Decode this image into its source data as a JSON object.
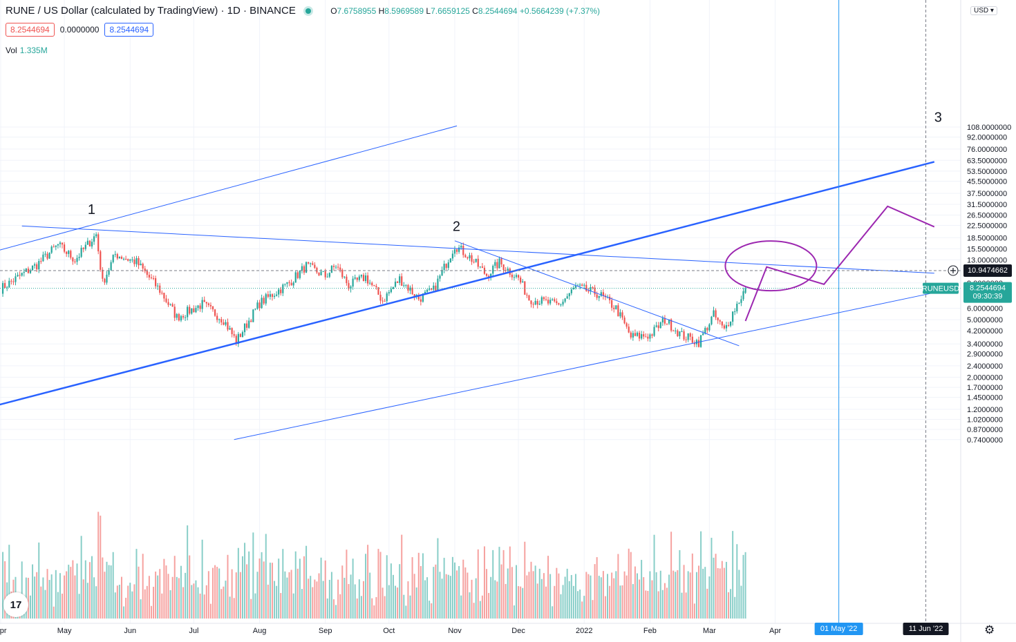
{
  "header": {
    "symbol_title": "RUNE / US Dollar (calculated by TradingView) · 1D · BINANCE",
    "ohlc": {
      "o_label": "O",
      "o": "7.6758955",
      "h_label": "H",
      "h": "8.5969589",
      "l_label": "L",
      "l": "7.6659125",
      "c_label": "C",
      "c": "8.2544694",
      "change": "+0.5664239 (+7.37%)"
    },
    "bid": "8.2544694",
    "spread": "0.0000000",
    "ask": "8.2544694",
    "vol_label": "Vol",
    "vol_value": "1.335M",
    "currency": "USD",
    "currency_icon": "chevron-down-icon"
  },
  "price_axis": {
    "ticks": [
      "108.0000000",
      "92.0000000",
      "76.0000000",
      "63.5000000",
      "53.5000000",
      "45.5000000",
      "37.5000000",
      "31.5000000",
      "26.5000000",
      "22.5000000",
      "18.5000000",
      "15.5000000",
      "13.0000000",
      "9.0000000",
      "6.0000000",
      "5.0000000",
      "4.2000000",
      "3.4000000",
      "2.9000000",
      "2.4000000",
      "2.0000000",
      "1.7000000",
      "1.4500000",
      "1.2000000",
      "1.0200000",
      "0.8700000",
      "0.7400000"
    ],
    "crosshair_label": "10.9474662",
    "last_symbol": "RUNEUSD",
    "last_price": "8.2544694",
    "countdown": "09:30:39"
  },
  "time_axis": {
    "ticks": [
      "Apr",
      "May",
      "Jun",
      "Jul",
      "Aug",
      "Sep",
      "Oct",
      "Nov",
      "Dec",
      "2022",
      "Feb",
      "Mar",
      "Apr"
    ],
    "crosshair_label_1": "01 May '22",
    "crosshair_label_2": "11 Jun '22"
  },
  "annotations": {
    "wave_1": "1",
    "wave_2": "2",
    "wave_3": "3"
  },
  "colors": {
    "up": "#26a69a",
    "down": "#ef5350",
    "trendline": "#2962ff",
    "projection": "#9c27b0",
    "crosshair_v": "#2196f3"
  },
  "chart_data": {
    "type": "candlestick",
    "title": "RUNE / US Dollar (calculated by TradingView) · 1D · BINANCE",
    "scale": "log",
    "ylim": [
      0.74,
      108
    ],
    "x_range": [
      "2021-04-01",
      "2022-06-15"
    ],
    "grid": true,
    "anchors": [
      {
        "date": "2021-04-01",
        "close": 8.2
      },
      {
        "date": "2021-04-18",
        "close": 12.0
      },
      {
        "date": "2021-04-28",
        "close": 16.5
      },
      {
        "date": "2021-05-06",
        "close": 13.0
      },
      {
        "date": "2021-05-16",
        "close": 19.5
      },
      {
        "date": "2021-05-19",
        "close": 9.0
      },
      {
        "date": "2021-05-25",
        "close": 14.2
      },
      {
        "date": "2021-06-04",
        "close": 12.5
      },
      {
        "date": "2021-06-15",
        "close": 8.0
      },
      {
        "date": "2021-06-23",
        "close": 5.2
      },
      {
        "date": "2021-07-05",
        "close": 6.4
      },
      {
        "date": "2021-07-15",
        "close": 5.0
      },
      {
        "date": "2021-07-21",
        "close": 3.55
      },
      {
        "date": "2021-08-01",
        "close": 6.5
      },
      {
        "date": "2021-08-15",
        "close": 9.0
      },
      {
        "date": "2021-08-23",
        "close": 11.8
      },
      {
        "date": "2021-09-01",
        "close": 10.0
      },
      {
        "date": "2021-09-06",
        "close": 11.9
      },
      {
        "date": "2021-09-12",
        "close": 8.6
      },
      {
        "date": "2021-09-20",
        "close": 9.9
      },
      {
        "date": "2021-09-28",
        "close": 6.8
      },
      {
        "date": "2021-10-06",
        "close": 9.6
      },
      {
        "date": "2021-10-15",
        "close": 7.0
      },
      {
        "date": "2021-10-22",
        "close": 8.0
      },
      {
        "date": "2021-11-01",
        "close": 16.4
      },
      {
        "date": "2021-11-08",
        "close": 13.6
      },
      {
        "date": "2021-11-16",
        "close": 10.2
      },
      {
        "date": "2021-11-22",
        "close": 12.4
      },
      {
        "date": "2021-12-01",
        "close": 9.7
      },
      {
        "date": "2021-12-06",
        "close": 7.0
      },
      {
        "date": "2021-12-20",
        "close": 6.3
      },
      {
        "date": "2021-12-28",
        "close": 8.4
      },
      {
        "date": "2022-01-08",
        "close": 7.5
      },
      {
        "date": "2022-01-16",
        "close": 6.0
      },
      {
        "date": "2022-01-23",
        "close": 3.8
      },
      {
        "date": "2022-02-01",
        "close": 3.9
      },
      {
        "date": "2022-02-08",
        "close": 5.0
      },
      {
        "date": "2022-02-16",
        "close": 3.9
      },
      {
        "date": "2022-02-24",
        "close": 3.5
      },
      {
        "date": "2022-03-03",
        "close": 5.4
      },
      {
        "date": "2022-03-08",
        "close": 4.2
      },
      {
        "date": "2022-03-12",
        "close": 5.6
      },
      {
        "date": "2022-03-18",
        "close": 8.25
      }
    ],
    "trendlines": [
      {
        "from": {
          "date": "2021-03-25",
          "price": 14.3
        },
        "to": {
          "date": "2021-11-02",
          "price": 110
        }
      },
      {
        "from": {
          "date": "2021-04-11",
          "price": 22.3
        },
        "to": {
          "date": "2022-06-15",
          "price": 10.5
        }
      },
      {
        "from": {
          "date": "2021-03-25",
          "price": 1.22
        },
        "to": {
          "date": "2022-06-15",
          "price": 62.0
        }
      },
      {
        "from": {
          "date": "2021-07-20",
          "price": 0.74
        },
        "to": {
          "date": "2022-06-15",
          "price": 7.7
        }
      },
      {
        "from": {
          "date": "2021-11-01",
          "price": 17.6
        },
        "to": {
          "date": "2022-03-15",
          "price": 3.3
        }
      }
    ],
    "projection": [
      {
        "date": "2022-03-18",
        "price": 4.9
      },
      {
        "date": "2022-03-28",
        "price": 11.6
      },
      {
        "date": "2022-04-24",
        "price": 8.8
      },
      {
        "date": "2022-05-24",
        "price": 30.5
      },
      {
        "date": "2022-06-15",
        "price": 22.0
      }
    ],
    "crosshair_price": 10.9474662,
    "last_price": 8.2544694
  }
}
